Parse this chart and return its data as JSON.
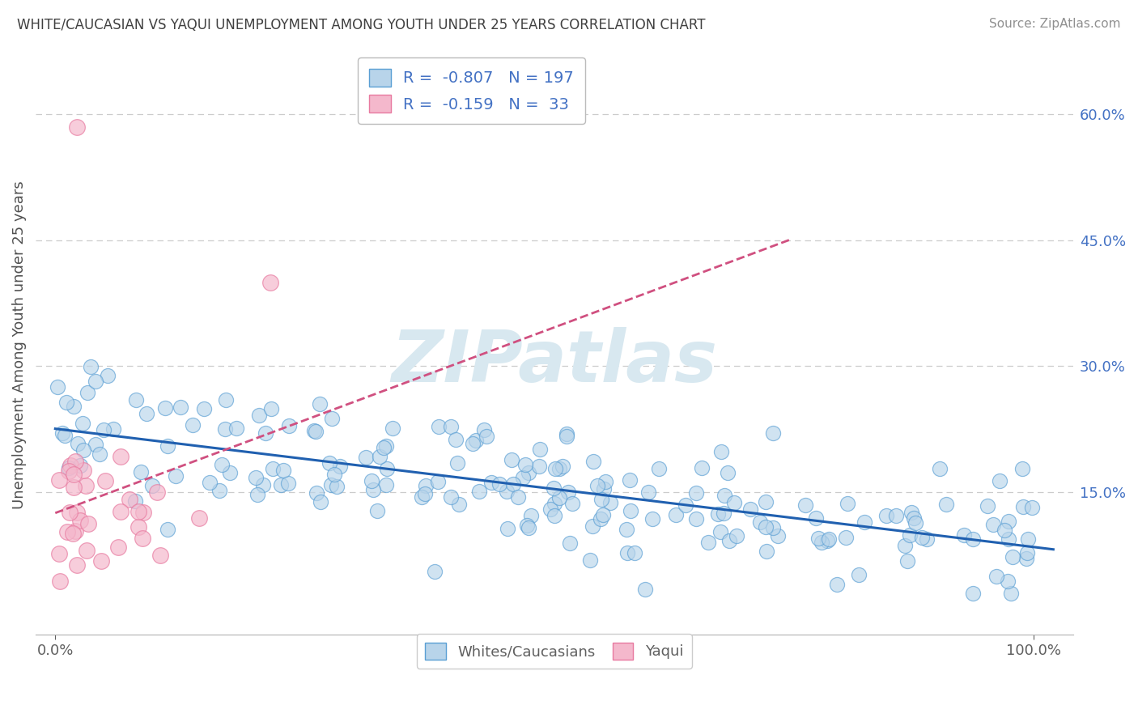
{
  "title": "WHITE/CAUCASIAN VS YAQUI UNEMPLOYMENT AMONG YOUTH UNDER 25 YEARS CORRELATION CHART",
  "source": "Source: ZipAtlas.com",
  "ylabel": "Unemployment Among Youth under 25 years",
  "xlim": [
    -0.02,
    1.04
  ],
  "ylim": [
    -0.02,
    0.67
  ],
  "xticks": [
    0.0,
    1.0
  ],
  "xticklabels": [
    "0.0%",
    "100.0%"
  ],
  "yticks_right": [
    0.15,
    0.3,
    0.45,
    0.6
  ],
  "yticklabels_right": [
    "15.0%",
    "30.0%",
    "45.0%",
    "60.0%"
  ],
  "legend_r_white": "-0.807",
  "legend_n_white": "197",
  "legend_r_yaqui": "-0.159",
  "legend_n_yaqui": "33",
  "white_face": "#b8d4ea",
  "white_edge": "#5a9fd4",
  "yaqui_face": "#f4b8cc",
  "yaqui_edge": "#e87aa0",
  "trend_white_color": "#2060b0",
  "trend_yaqui_color": "#d05080",
  "watermark": "ZIPatlas",
  "background_color": "#ffffff",
  "grid_color": "#cccccc",
  "title_color": "#404040",
  "axis_label_color": "#505050",
  "tick_color": "#606060",
  "source_color": "#909090",
  "right_tick_color": "#4472c4",
  "legend_text_color": "#4472c4"
}
